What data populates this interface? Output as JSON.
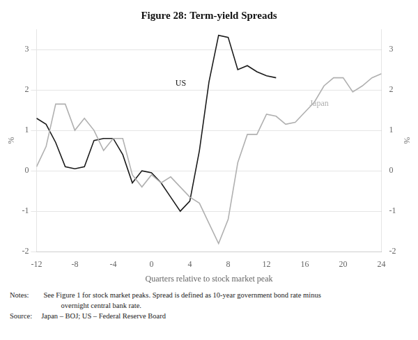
{
  "chart_data": {
    "type": "line",
    "title": "Figure 28: Term-yield Spreads",
    "x_label": "Quarters relative to stock market peak",
    "y_label": "%",
    "y2_label": "%",
    "xlim": [
      -12,
      24
    ],
    "xticks": [
      -12,
      -8,
      -4,
      0,
      4,
      8,
      12,
      16,
      20,
      24
    ],
    "ylim": [
      -2,
      3.5
    ],
    "yticks": [
      -2,
      -1,
      0,
      1,
      2,
      3
    ],
    "y2lim": [
      -2,
      3.5
    ],
    "y2ticks": [
      -2,
      -1,
      0,
      1,
      2,
      3
    ],
    "grid": "y",
    "series": [
      {
        "name": "Japan",
        "color": "#b0b0b0",
        "x": [
          -12,
          -11,
          -10,
          -9,
          -8,
          -7,
          -6,
          -5,
          -4,
          -3,
          -2,
          -1,
          0,
          1,
          2,
          3,
          4,
          5,
          6,
          7,
          8,
          9,
          10,
          11,
          12,
          13,
          14,
          15,
          16,
          17,
          18,
          19,
          20,
          21,
          22,
          23,
          24
        ],
        "values": [
          0.1,
          0.6,
          1.65,
          1.65,
          1.0,
          1.3,
          1.0,
          0.5,
          0.8,
          0.8,
          -0.1,
          -0.4,
          -0.1,
          -0.3,
          -0.15,
          -0.4,
          -0.65,
          -0.8,
          -1.3,
          -1.8,
          -1.2,
          0.2,
          0.9,
          0.9,
          1.4,
          1.35,
          1.15,
          1.2,
          1.45,
          1.7,
          2.1,
          2.3,
          2.3,
          1.95,
          2.1,
          2.3,
          2.4
        ]
      },
      {
        "name": "US",
        "color": "#1a1a1a",
        "x": [
          -12,
          -11,
          -10,
          -9,
          -8,
          -7,
          -6,
          -5,
          -4,
          -3,
          -2,
          -1,
          0,
          1,
          2,
          3,
          4,
          5,
          6,
          7,
          8,
          9,
          10,
          11,
          12,
          13
        ],
        "values": [
          1.3,
          1.15,
          0.7,
          0.1,
          0.05,
          0.1,
          0.75,
          0.8,
          0.8,
          0.4,
          -0.3,
          0.0,
          -0.05,
          -0.3,
          -0.65,
          -1.0,
          -0.75,
          0.5,
          2.2,
          3.35,
          3.3,
          2.5,
          2.6,
          2.45,
          2.35,
          2.3
        ]
      }
    ],
    "annotations": [
      {
        "text": "US",
        "x": 2.5,
        "y": 2.05,
        "color": "#1a1a1a"
      },
      {
        "text": "Japan",
        "x": 16.5,
        "y": 1.55,
        "color": "#b0b0b0"
      }
    ],
    "notes": [
      "Notes:  See Figure 1 for stock market peaks. Spread is defined as 10-year government bond rate minus",
      "       overnight central bank rate.",
      "Source:  Japan – BOJ; US – Federal Reserve Board"
    ]
  }
}
